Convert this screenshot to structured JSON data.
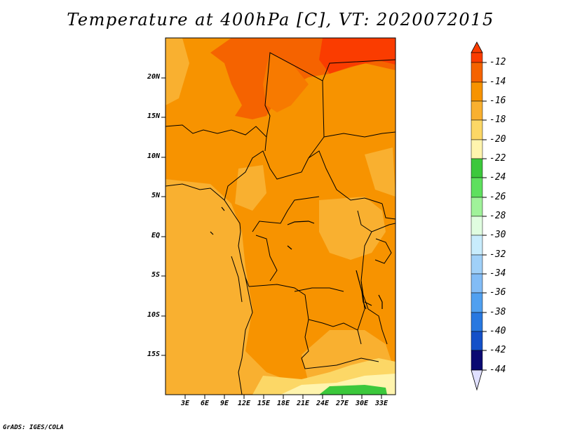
{
  "title": "Temperature at 400hPa [C], VT: 2020072015",
  "credit": "GrADS: IGES/COLA",
  "map": {
    "lat_labels": [
      "20N",
      "15N",
      "10N",
      "5N",
      "EQ",
      "5S",
      "10S",
      "15S"
    ],
    "lon_labels": [
      "3E",
      "6E",
      "9E",
      "12E",
      "15E",
      "18E",
      "21E",
      "24E",
      "27E",
      "30E",
      "33E"
    ]
  },
  "colorbar": {
    "labels": [
      "-12",
      "-14",
      "-16",
      "-18",
      "-20",
      "-22",
      "-24",
      "-26",
      "-28",
      "-30",
      "-32",
      "-34",
      "-36",
      "-38",
      "-40",
      "-42",
      "-44"
    ],
    "colors": [
      "#fa3c00",
      "#f56300",
      "#f79300",
      "#f9b030",
      "#fcd766",
      "#fff4ae",
      "#3cc83c",
      "#5ee05e",
      "#a0f29a",
      "#e0fde0",
      "#c8ecfc",
      "#a0d0f8",
      "#82bcf6",
      "#50a0f0",
      "#2878e0",
      "#1450c8",
      "#1426a8",
      "#0a0a72"
    ],
    "top_color": "#fa3c00",
    "bottom_color": "#e0e0ff"
  }
}
